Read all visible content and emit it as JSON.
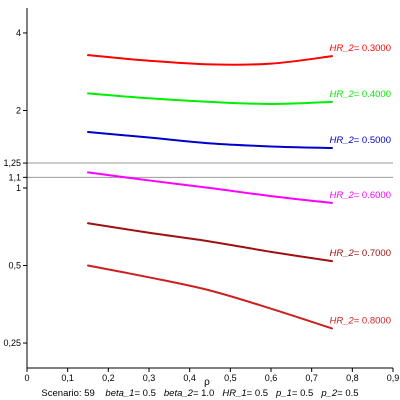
{
  "chart_data": {
    "type": "line",
    "title": "",
    "xlabel": "ρ",
    "ylabel": "",
    "xlim": [
      0,
      0.9
    ],
    "ylim": [
      0.2,
      5.0
    ],
    "y_scale": "log",
    "x_ticks": [
      0,
      0.1,
      0.2,
      0.3,
      0.4,
      0.5,
      0.6,
      0.7,
      0.8,
      0.9
    ],
    "x_tick_labels": [
      "0",
      "0,1",
      "0,2",
      "0,3",
      "0,4",
      "0,5",
      "0,6",
      "0,7",
      "0,8",
      "0,9"
    ],
    "y_ticks": [
      0.25,
      0.5,
      1,
      1.1,
      1.25,
      2,
      4
    ],
    "y_tick_labels": [
      "0,25",
      "0,5",
      "1",
      "1,1",
      "1,25",
      "2",
      "4"
    ],
    "reference_lines_y": [
      1.1,
      1.25
    ],
    "reference_line_color": "#999999",
    "grid": false,
    "legend": "inline-right",
    "series": [
      {
        "name": "0.3000",
        "color": "#ff0000",
        "x": [
          0.15,
          0.3,
          0.45,
          0.6,
          0.75
        ],
        "y": [
          3.28,
          3.12,
          3.02,
          3.04,
          3.25
        ]
      },
      {
        "name": "0.4000",
        "color": "#00ee00",
        "x": [
          0.15,
          0.3,
          0.45,
          0.6,
          0.75
        ],
        "y": [
          2.33,
          2.23,
          2.16,
          2.12,
          2.16
        ]
      },
      {
        "name": "0.5000",
        "color": "#0000cc",
        "x": [
          0.15,
          0.3,
          0.45,
          0.6,
          0.75
        ],
        "y": [
          1.65,
          1.57,
          1.49,
          1.45,
          1.43
        ]
      },
      {
        "name": "0.6000",
        "color": "#ff00ff",
        "x": [
          0.15,
          0.3,
          0.45,
          0.6,
          0.75
        ],
        "y": [
          1.15,
          1.07,
          1.0,
          0.93,
          0.875
        ]
      },
      {
        "name": "0.7000",
        "color": "#a01010",
        "x": [
          0.15,
          0.3,
          0.45,
          0.6,
          0.75
        ],
        "y": [
          0.73,
          0.67,
          0.62,
          0.565,
          0.52
        ]
      },
      {
        "name": "0.8000",
        "color": "#cc2020",
        "x": [
          0.15,
          0.3,
          0.45,
          0.6,
          0.75
        ],
        "y": [
          0.5,
          0.45,
          0.4,
          0.34,
          0.285
        ]
      }
    ],
    "series_label_prefix": "HR_2",
    "series_label_equals": "= ",
    "footer": {
      "scenario_label": "Scenario: 59",
      "params": [
        {
          "name": "beta_1",
          "value": "0.5"
        },
        {
          "name": "beta_2",
          "value": "1.0"
        },
        {
          "name": "HR_1",
          "value": "0.5"
        },
        {
          "name": "p_1",
          "value": "0.5"
        },
        {
          "name": "p_2",
          "value": "0.5"
        }
      ]
    }
  }
}
